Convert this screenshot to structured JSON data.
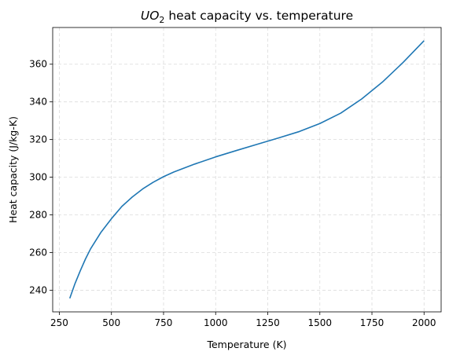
{
  "chart_data": {
    "type": "line",
    "title": {
      "main": "UO",
      "subscript": "2",
      "rest": " heat capacity vs. temperature"
    },
    "xlabel": "Temperature (K)",
    "ylabel": "Heat capacity (J/kg-K)",
    "xlim": [
      218,
      2082
    ],
    "ylim": [
      228.5,
      379.5
    ],
    "xticks": [
      250,
      500,
      750,
      1000,
      1250,
      1500,
      1750,
      2000
    ],
    "yticks": [
      240,
      260,
      280,
      300,
      320,
      340,
      360
    ],
    "grid": true,
    "series": [
      {
        "color": "#1f77b4",
        "x": [
          300,
          325,
          350,
          375,
          400,
          450,
          500,
          550,
          600,
          650,
          700,
          750,
          800,
          900,
          1000,
          1100,
          1200,
          1300,
          1400,
          1500,
          1600,
          1700,
          1800,
          1900,
          2000
        ],
        "y": [
          235.7,
          243.5,
          250.2,
          256.5,
          262.0,
          270.8,
          278.0,
          284.5,
          289.5,
          293.8,
          297.3,
          300.3,
          302.8,
          307.0,
          310.8,
          314.2,
          317.5,
          320.8,
          324.2,
          328.5,
          334.0,
          341.5,
          350.5,
          361.0,
          372.5
        ]
      }
    ]
  }
}
